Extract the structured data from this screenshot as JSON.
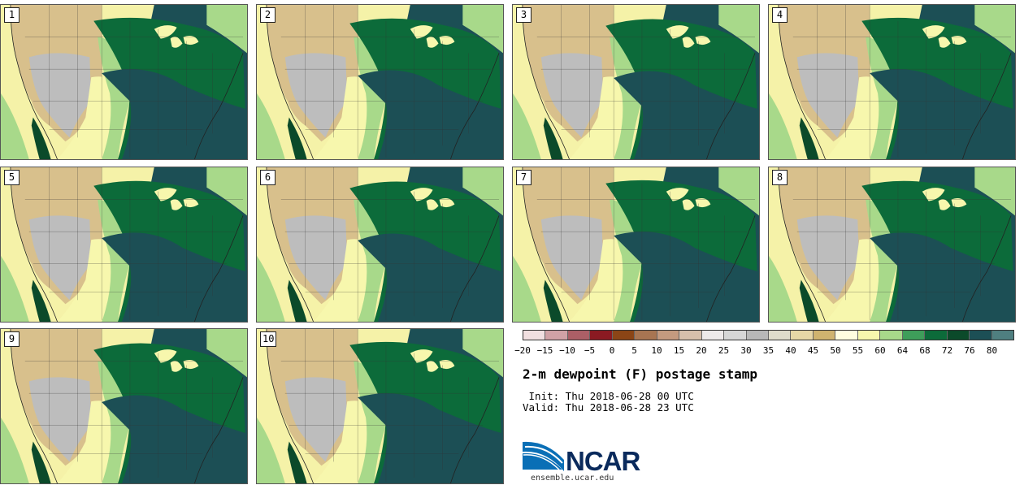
{
  "panels": [
    {
      "label": "1"
    },
    {
      "label": "2"
    },
    {
      "label": "3"
    },
    {
      "label": "4"
    },
    {
      "label": "5"
    },
    {
      "label": "6"
    },
    {
      "label": "7"
    },
    {
      "label": "8"
    },
    {
      "label": "9"
    },
    {
      "label": "10"
    }
  ],
  "colorbar": {
    "colors": [
      "#f1dfe0",
      "#d1a2a6",
      "#ac5f66",
      "#8b1a22",
      "#8b4516",
      "#a87552",
      "#c49a7f",
      "#d7bfab",
      "#eeeaea",
      "#d6d6d6",
      "#b8b8b8",
      "#dfdccb",
      "#e7d7a6",
      "#cfb36f",
      "#fffde0",
      "#f7f7ad",
      "#a8d98a",
      "#3e9e5a",
      "#0c6b3a",
      "#0b4a2a",
      "#1c4f55",
      "#4f7f80"
    ],
    "tick_labels": [
      "−20",
      "−15",
      "−10",
      "−5",
      "0",
      "5",
      "10",
      "15",
      "20",
      "25",
      "30",
      "35",
      "40",
      "45",
      "50",
      "55",
      "60",
      "64",
      "68",
      "72",
      "76",
      "80"
    ]
  },
  "title": "2-m dewpoint (F) postage stamp",
  "init": " Init: Thu 2018-06-28 00 UTC",
  "valid": "Valid: Thu 2018-06-28 23 UTC",
  "logo": {
    "text": "NCAR",
    "url": "ensemble.ucar.edu",
    "colors": [
      "#0a6fb6",
      "#0a2a5c"
    ]
  },
  "map_colors": {
    "ocean_west": "#f5f2a8",
    "ocean_east": "#1c4f55",
    "dry": "#d8c08c",
    "very_dry": "#bdbdbd",
    "moderate": "#f7f7ad",
    "light_green": "#a8d98a",
    "green": "#0c6b3a",
    "dark_green": "#0b4a2a",
    "teal": "#1c4f55"
  }
}
